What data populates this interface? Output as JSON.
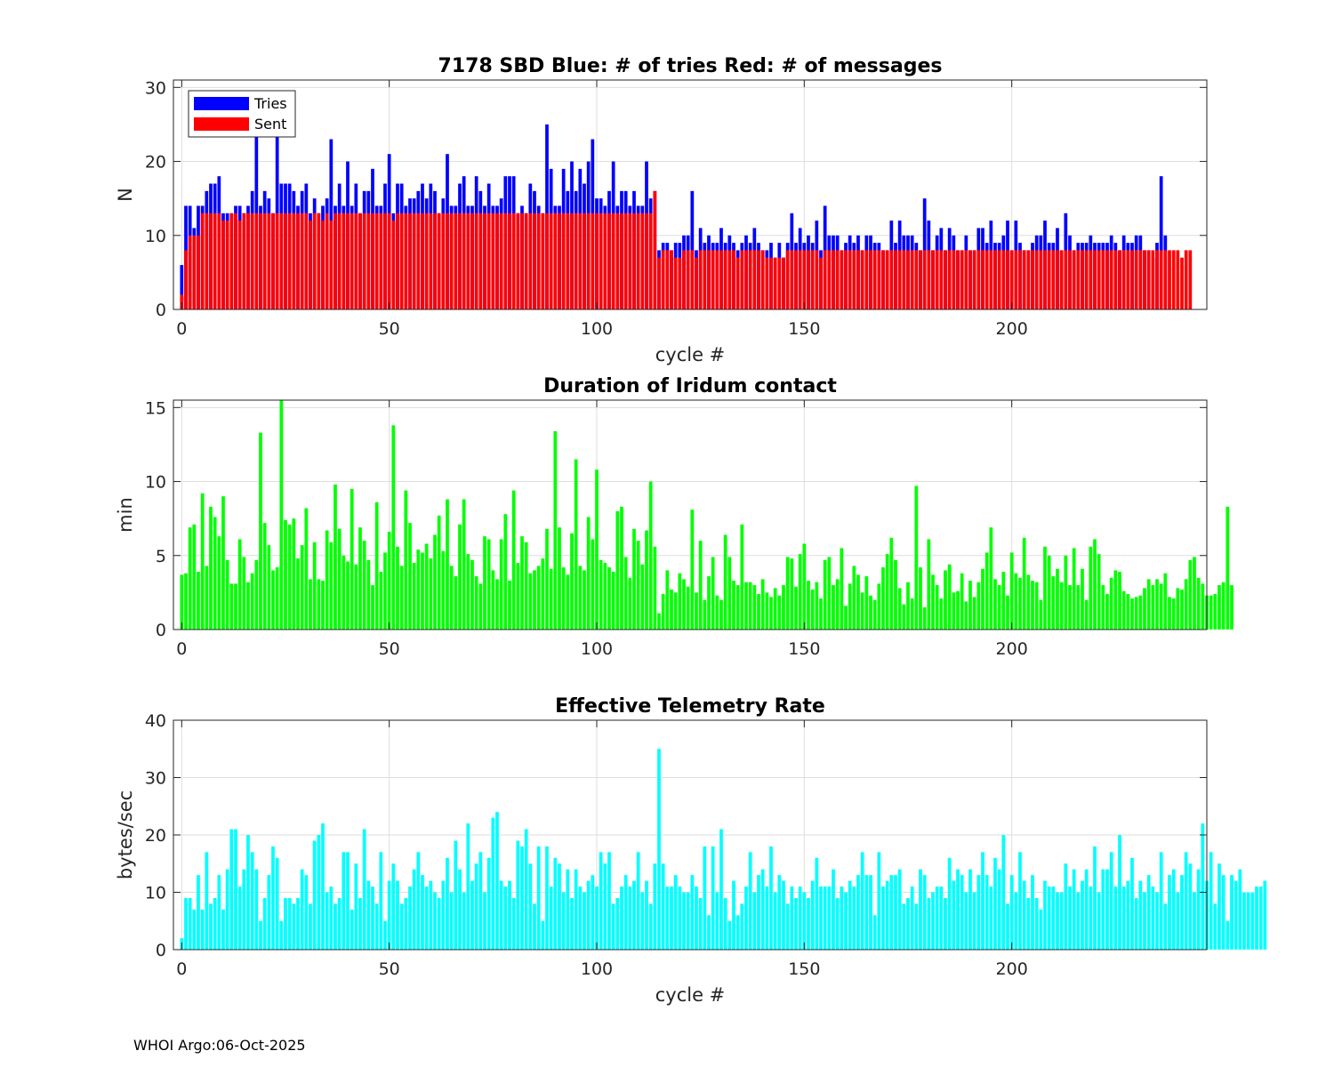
{
  "footer": "WHOI Argo:06-Oct-2025",
  "chart_data": [
    {
      "type": "bar",
      "title": "7178 SBD  Blue: # of tries   Red: # of messages",
      "xlabel": "cycle #",
      "ylabel": "N",
      "xlim": [
        -2,
        247
      ],
      "ylim": [
        0,
        31
      ],
      "xticks": [
        0,
        50,
        100,
        150,
        200
      ],
      "yticks": [
        0,
        10,
        20,
        30
      ],
      "x_start": 0,
      "legend": {
        "position": "top-left",
        "entries": [
          "Tries",
          "Sent"
        ]
      },
      "series": [
        {
          "name": "Tries",
          "color": "#0000ff",
          "values": [
            6,
            14,
            14,
            11,
            14,
            14,
            16,
            17,
            17,
            18,
            13,
            13,
            13,
            14,
            14,
            13,
            14,
            16,
            24,
            14,
            16,
            15,
            13,
            24,
            17,
            17,
            17,
            16,
            14,
            16,
            17,
            13,
            15,
            13,
            14,
            15,
            23,
            14,
            17,
            14,
            20,
            14,
            17,
            13,
            16,
            16,
            19,
            14,
            14,
            17,
            21,
            13,
            17,
            17,
            14,
            15,
            15,
            16,
            17,
            15,
            17,
            16,
            13,
            15,
            21,
            14,
            14,
            17,
            18,
            14,
            14,
            18,
            16,
            14,
            17,
            14,
            14,
            15,
            18,
            18,
            18,
            13,
            14,
            13,
            17,
            16,
            14,
            13,
            25,
            19,
            14,
            14,
            19,
            16,
            20,
            16,
            19,
            17,
            20,
            23,
            15,
            15,
            14,
            16,
            20,
            14,
            16,
            16,
            14,
            16,
            14,
            14,
            20,
            15,
            16,
            8,
            9,
            9,
            8,
            9,
            9,
            10,
            10,
            16,
            8,
            11,
            9,
            10,
            9,
            9,
            11,
            9,
            10,
            9,
            8,
            9,
            10,
            9,
            11,
            9,
            8,
            8,
            9,
            7,
            9,
            7,
            9,
            13,
            9,
            11,
            9,
            10,
            9,
            12,
            8,
            14,
            10,
            10,
            10,
            8,
            9,
            10,
            9,
            10,
            8,
            10,
            10,
            9,
            9,
            8,
            8,
            12,
            9,
            12,
            10,
            10,
            10,
            9,
            8,
            15,
            12,
            8,
            10,
            11,
            8,
            11,
            10,
            8,
            8,
            10,
            8,
            8,
            11,
            11,
            9,
            12,
            9,
            9,
            10,
            12,
            8,
            12,
            9,
            8,
            8,
            9,
            10,
            10,
            12,
            9,
            9,
            11,
            8,
            13,
            10,
            8,
            9,
            9,
            9,
            10,
            9,
            9,
            9,
            9,
            10,
            9,
            8,
            10,
            9,
            9,
            10,
            10,
            8,
            8,
            7,
            9,
            18,
            10
          ]
        },
        {
          "name": "Sent",
          "color": "#ff0000",
          "values": [
            2,
            8,
            10,
            10,
            10,
            13,
            13,
            13,
            13,
            13,
            12,
            12,
            13,
            13,
            12,
            13,
            13,
            13,
            13,
            13,
            13,
            13,
            13,
            13,
            13,
            13,
            13,
            13,
            13,
            13,
            13,
            12,
            13,
            13,
            12,
            13,
            12,
            13,
            13,
            13,
            13,
            13,
            13,
            13,
            13,
            13,
            13,
            13,
            13,
            13,
            13,
            12,
            13,
            13,
            13,
            13,
            13,
            13,
            13,
            13,
            13,
            13,
            13,
            13,
            13,
            13,
            13,
            13,
            13,
            13,
            13,
            13,
            13,
            13,
            13,
            13,
            13,
            13,
            13,
            13,
            13,
            13,
            13,
            13,
            13,
            13,
            13,
            13,
            13,
            13,
            13,
            13,
            13,
            13,
            13,
            13,
            13,
            13,
            13,
            13,
            13,
            13,
            13,
            13,
            13,
            13,
            13,
            13,
            13,
            13,
            13,
            13,
            13,
            13,
            16,
            7,
            8,
            8,
            8,
            7,
            7,
            8,
            8,
            8,
            7,
            8,
            8,
            8,
            8,
            8,
            8,
            8,
            8,
            8,
            7,
            8,
            8,
            8,
            8,
            8,
            8,
            7,
            7,
            7,
            7,
            7,
            8,
            8,
            8,
            8,
            8,
            8,
            8,
            8,
            7,
            8,
            8,
            8,
            8,
            8,
            8,
            8,
            8,
            8,
            8,
            8,
            8,
            8,
            8,
            8,
            8,
            8,
            8,
            8,
            8,
            8,
            8,
            8,
            8,
            8,
            8,
            8,
            8,
            8,
            8,
            8,
            8,
            8,
            8,
            8,
            8,
            8,
            8,
            8,
            8,
            8,
            8,
            8,
            8,
            8,
            8,
            8,
            8,
            8,
            8,
            8,
            8,
            8,
            8,
            8,
            8,
            8,
            8,
            8,
            8,
            8,
            8,
            8,
            8,
            8,
            8,
            8,
            8,
            8,
            8,
            8,
            8,
            8,
            8,
            8,
            8,
            8,
            8,
            8,
            8,
            8,
            8,
            8,
            8,
            8,
            8,
            7,
            8,
            8
          ]
        }
      ]
    },
    {
      "type": "bar",
      "title": "Duration of Iridum contact",
      "xlabel": "",
      "ylabel": "min",
      "xlim": [
        -2,
        247
      ],
      "ylim": [
        0,
        15.5
      ],
      "xticks": [
        0,
        50,
        100,
        150,
        200
      ],
      "yticks": [
        0,
        5,
        10,
        15
      ],
      "x_start": 0,
      "series": [
        {
          "name": "Duration",
          "color": "#00ff00",
          "values": [
            3.7,
            3.8,
            6.9,
            7.1,
            3.9,
            9.2,
            4.3,
            8.3,
            7.6,
            6.3,
            9.0,
            4.7,
            3.1,
            3.1,
            6.1,
            4.9,
            3.2,
            3.8,
            4.7,
            13.3,
            7.2,
            5.7,
            4.0,
            4.2,
            15.5,
            7.4,
            7.1,
            7.5,
            4.8,
            5.7,
            8.2,
            3.4,
            5.9,
            3.4,
            3.3,
            6.7,
            5.9,
            9.8,
            6.8,
            5.0,
            4.6,
            9.5,
            4.4,
            6.9,
            6.0,
            4.7,
            3.0,
            8.6,
            3.9,
            5.2,
            6.6,
            13.8,
            5.6,
            4.3,
            9.4,
            7.2,
            4.5,
            5.4,
            5.2,
            5.8,
            4.8,
            6.4,
            7.7,
            5.3,
            8.8,
            4.3,
            3.6,
            7.1,
            8.8,
            5.1,
            4.7,
            3.6,
            3.1,
            6.3,
            6.1,
            4.0,
            3.4,
            6.1,
            7.8,
            3.3,
            9.4,
            4.5,
            6.3,
            5.9,
            3.8,
            4.0,
            4.3,
            4.8,
            6.8,
            4.1,
            13.4,
            6.9,
            4.2,
            3.7,
            6.5,
            11.5,
            4.3,
            4.0,
            7.6,
            6.1,
            10.8,
            4.7,
            4.5,
            4.2,
            3.9,
            8.0,
            8.3,
            4.9,
            3.5,
            6.8,
            6.0,
            4.4,
            6.7,
            10.0,
            5.6,
            1.1,
            2.4,
            4.0,
            2.7,
            2.5,
            3.8,
            3.4,
            2.9,
            8.1,
            2.5,
            6.0,
            2.0,
            3.6,
            4.9,
            2.3,
            2.0,
            6.4,
            4.9,
            3.3,
            3.0,
            7.1,
            3.2,
            3.2,
            3.0,
            2.4,
            3.4,
            2.5,
            2.2,
            2.8,
            2.3,
            3.0,
            4.9,
            4.8,
            2.9,
            5.1,
            5.8,
            3.3,
            2.7,
            3.2,
            2.1,
            4.7,
            4.9,
            3.0,
            3.4,
            5.5,
            1.6,
            3.1,
            4.3,
            3.7,
            2.5,
            3.6,
            2.3,
            2.0,
            3.1,
            4.2,
            5.1,
            6.2,
            4.7,
            2.8,
            1.7,
            3.2,
            2.1,
            9.7,
            4.2,
            1.5,
            6.1,
            3.7,
            3.0,
            2.1,
            4.0,
            4.4,
            2.5,
            2.6,
            3.8,
            1.9,
            3.3,
            2.2,
            3.2,
            4.1,
            5.2,
            6.9,
            3.4,
            3.0,
            3.9,
            2.3,
            5.2,
            3.8,
            3.5,
            6.2,
            3.7,
            3.3,
            3.2,
            2.0,
            5.6,
            5.0,
            3.6,
            4.1,
            3.2,
            5.0,
            3.0,
            5.5,
            3.0,
            4.1,
            2.0,
            5.6,
            6.1,
            5.1,
            3.0,
            2.4,
            3.5,
            4.0,
            3.9,
            2.6,
            2.4,
            2.1,
            2.2,
            2.3,
            2.8,
            3.4,
            3.0,
            3.4,
            3.1,
            3.8,
            2.2,
            2.1,
            2.8,
            2.7,
            3.4,
            4.7,
            4.9,
            3.5,
            3.1,
            2.3,
            2.3,
            2.4,
            3.0,
            3.2,
            8.3,
            3.0
          ]
        }
      ]
    },
    {
      "type": "bar",
      "title": "Effective Telemetry Rate",
      "xlabel": "cycle #",
      "ylabel": "bytes/sec",
      "xlim": [
        -2,
        247
      ],
      "ylim": [
        0,
        40
      ],
      "xticks": [
        0,
        50,
        100,
        150,
        200
      ],
      "yticks": [
        0,
        10,
        20,
        30,
        40
      ],
      "x_start": 0,
      "series": [
        {
          "name": "Rate",
          "color": "#00ffff",
          "values": [
            2,
            9,
            9,
            7,
            13,
            7,
            17,
            8,
            9,
            13,
            7,
            14,
            21,
            21,
            11,
            14,
            20,
            17,
            14,
            5,
            9,
            13,
            18,
            16,
            5,
            9,
            9,
            8,
            9,
            14,
            13,
            8,
            19,
            20,
            22,
            10,
            11,
            8,
            9,
            17,
            17,
            7,
            15,
            9,
            21,
            12,
            11,
            8,
            17,
            5,
            12,
            15,
            12,
            8,
            9,
            11,
            14,
            17,
            13,
            11,
            12,
            10,
            9,
            12,
            16,
            10,
            19,
            14,
            10,
            22,
            12,
            15,
            17,
            10,
            16,
            23,
            24,
            12,
            11,
            12,
            9,
            19,
            18,
            21,
            15,
            8,
            18,
            5,
            18,
            11,
            16,
            15,
            10,
            14,
            9,
            14,
            11,
            10,
            12,
            13,
            11,
            17,
            15,
            17,
            8,
            9,
            11,
            13,
            11,
            12,
            17,
            10,
            12,
            8,
            15,
            35,
            15,
            11,
            11,
            13,
            11,
            10,
            10,
            13,
            11,
            9,
            18,
            6,
            18,
            10,
            21,
            9,
            5,
            12,
            6,
            8,
            11,
            17,
            10,
            13,
            14,
            11,
            18,
            10,
            13,
            12,
            8,
            11,
            9,
            11,
            10,
            9,
            12,
            16,
            11,
            11,
            11,
            14,
            9,
            11,
            10,
            12,
            11,
            13,
            17,
            13,
            13,
            6,
            17,
            11,
            12,
            13,
            13,
            14,
            8,
            9,
            11,
            8,
            14,
            13,
            9,
            10,
            11,
            11,
            9,
            16,
            12,
            14,
            13,
            10,
            14,
            10,
            13,
            17,
            13,
            11,
            16,
            14,
            20,
            8,
            13,
            10,
            17,
            12,
            9,
            13,
            9,
            7,
            12,
            11,
            11,
            10,
            10,
            15,
            11,
            14,
            10,
            12,
            14,
            11,
            18,
            10,
            14,
            14,
            17,
            11,
            20,
            11,
            12,
            16,
            9,
            12,
            10,
            13,
            11,
            10,
            17,
            8,
            13,
            14,
            10,
            13,
            17,
            15,
            10,
            14,
            22,
            12,
            17,
            8,
            15,
            13,
            5,
            13,
            12,
            14,
            10,
            10,
            10,
            11,
            11,
            12
          ]
        }
      ]
    }
  ]
}
